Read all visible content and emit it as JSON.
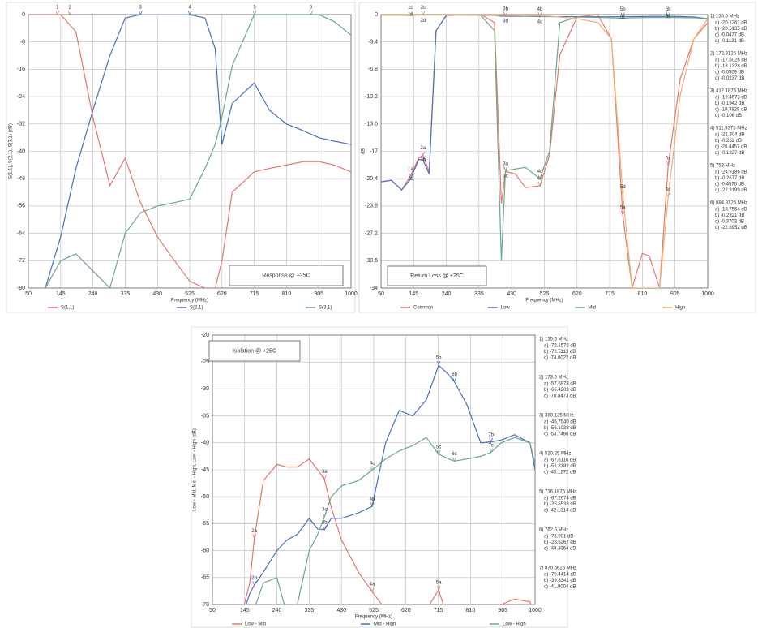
{
  "chart_data": [
    {
      "type": "line",
      "title": "Response @ +25C",
      "xlabel": "Frequency (MHz)",
      "ylabel": "S(1,1), S(2,1), S(3,1) (dB)",
      "x": [
        50,
        100,
        145,
        190,
        240,
        290,
        335,
        380,
        430,
        480,
        525,
        570,
        600,
        620,
        650,
        715,
        760,
        810,
        860,
        905,
        950,
        1000
      ],
      "series": [
        {
          "name": "S(1,1)",
          "color": "#e8766f",
          "values": [
            0,
            0,
            0,
            -5,
            -30,
            -50,
            -42,
            -55,
            -65,
            -72,
            -78,
            -80,
            -80,
            -72,
            -52,
            -46,
            -45,
            -44,
            -43,
            -43,
            -44,
            -46
          ]
        },
        {
          "name": "S(2,1)",
          "color": "#4a6fc0",
          "values": [
            null,
            -80,
            -65,
            -45,
            -28,
            -12,
            -1,
            0,
            0,
            0,
            0,
            -1,
            -10,
            -38,
            -26,
            -20,
            -28,
            -32,
            -34,
            -36,
            -37,
            -38
          ]
        },
        {
          "name": "S(3,1)",
          "color": "#6aa88a",
          "values": [
            null,
            -80,
            -72,
            -70,
            -75,
            -80,
            -64,
            -58,
            -56,
            -55,
            -54,
            -45,
            -38,
            -30,
            -15,
            0,
            0,
            0,
            0,
            0,
            -2,
            -6
          ]
        }
      ],
      "xlim": [
        50,
        1000
      ],
      "xticks": [
        50,
        145,
        240,
        335,
        430,
        525,
        620,
        715,
        810,
        905,
        1000
      ],
      "ylim": [
        -80,
        0
      ],
      "yticks": [
        0,
        -8,
        -16,
        -24,
        -32,
        -40,
        -48,
        -56,
        -64,
        -72,
        -80
      ],
      "grid": true,
      "markers": [
        {
          "label": "1",
          "x": 135.5,
          "y": 0,
          "color": "#e8766f"
        },
        {
          "label": "2",
          "x": 172,
          "y": 0,
          "color": "#e8766f"
        },
        {
          "label": "3",
          "x": 380,
          "y": 0,
          "color": "#4a6fc0"
        },
        {
          "label": "4",
          "x": 525,
          "y": 0,
          "color": "#4a6fc0"
        },
        {
          "label": "5",
          "x": 716,
          "y": 0,
          "color": "#6aa88a"
        },
        {
          "label": "6",
          "x": 882,
          "y": 0,
          "color": "#6aa88a"
        }
      ]
    },
    {
      "type": "line",
      "title": "Return Loss @ +25C",
      "xlabel": "Frequency (MHz)",
      "ylabel": "dB",
      "x": [
        50,
        80,
        110,
        135,
        160,
        172,
        190,
        210,
        240,
        290,
        340,
        380,
        400,
        412,
        440,
        470,
        512,
        540,
        570,
        620,
        680,
        720,
        753,
        780,
        810,
        830,
        860,
        885,
        920,
        960,
        1000
      ],
      "series": [
        {
          "name": "Common",
          "color": "#e8766f",
          "values": [
            -20.8,
            -20.6,
            -21.8,
            -20.1,
            -17.8,
            -17.5,
            -19.5,
            -2,
            -0.1,
            0,
            0,
            -1,
            -23.5,
            -19.5,
            -19.8,
            -21.5,
            -21.3,
            -17.5,
            -5,
            -0.3,
            0,
            -3,
            -24.9,
            -34,
            -29.7,
            -30,
            -34,
            -18.8,
            -8,
            -3,
            -1
          ]
        },
        {
          "name": "Low",
          "color": "#4a6fc0",
          "values": [
            -20.8,
            -20.6,
            -21.8,
            -20.5,
            -18,
            -18.1,
            -19.8,
            -2,
            -0.1,
            0,
            0,
            -0.1,
            -0.2,
            -0.2,
            -0.2,
            -0.2,
            -0.26,
            -0.26,
            -0.26,
            -0.26,
            -0.27,
            -0.27,
            -0.27,
            -0.25,
            -0.24,
            -0.23,
            -0.23,
            -0.23,
            -0.24,
            -0.3,
            -0.5
          ]
        },
        {
          "name": "Mid",
          "color": "#6aa88a",
          "values": [
            -0.05,
            -0.05,
            -0.05,
            -0.05,
            -0.05,
            -0.05,
            -0.05,
            -0.05,
            -0.05,
            -0.05,
            -0.1,
            -2,
            -30.6,
            -19.4,
            -19.2,
            -19,
            -20.4,
            -17,
            -1,
            -0.3,
            -0.35,
            -0.4,
            -0.46,
            -0.4,
            -0.38,
            -0.37,
            -0.37,
            -0.37,
            -0.38,
            -0.4,
            -0.5
          ]
        },
        {
          "name": "High",
          "color": "#f0b070",
          "values": [
            -0.1,
            -0.1,
            -0.1,
            -0.11,
            -0.05,
            -0.02,
            -0.02,
            -0.02,
            -0.05,
            -0.08,
            -0.1,
            -0.1,
            -0.1,
            -0.11,
            -0.12,
            -0.15,
            -0.18,
            -0.2,
            -0.3,
            -0.5,
            -1,
            -3,
            -22.3,
            -34,
            -34,
            -34,
            -34,
            -22.7,
            -10,
            -3,
            -0.5
          ]
        }
      ],
      "xlim": [
        50,
        1000
      ],
      "xticks": [
        50,
        145,
        240,
        335,
        430,
        525,
        620,
        715,
        810,
        905,
        1000
      ],
      "ylim": [
        -34,
        0
      ],
      "yticks": [
        0,
        -3.4,
        -6.8,
        -10.2,
        -13.6,
        -17,
        -20.4,
        -23.8,
        -27.2,
        -30.6,
        -34
      ],
      "grid": true,
      "markers": [
        {
          "label": "1a",
          "x": 135.5,
          "y": -20.1261,
          "color": "#e8766f"
        },
        {
          "label": "1b",
          "x": 135.5,
          "y": -20.5135,
          "color": "#4a6fc0"
        },
        {
          "label": "1c",
          "x": 135.5,
          "y": -0.0477,
          "color": "#6aa88a"
        },
        {
          "label": "1d",
          "x": 135.5,
          "y": -0.1131,
          "color": "#f0b070"
        },
        {
          "label": "2a",
          "x": 172.3125,
          "y": -17.5026,
          "color": "#e8766f"
        },
        {
          "label": "2b",
          "x": 172.3125,
          "y": -18.1328,
          "color": "#4a6fc0"
        },
        {
          "label": "2c",
          "x": 172.3125,
          "y": -0.0509,
          "color": "#6aa88a"
        },
        {
          "label": "2d",
          "x": 172.3125,
          "y": -0.0237,
          "color": "#f0b070"
        },
        {
          "label": "3a",
          "x": 412.1875,
          "y": -19.4673,
          "color": "#e8766f"
        },
        {
          "label": "3b",
          "x": 412.1875,
          "y": -0.1942,
          "color": "#4a6fc0"
        },
        {
          "label": "3c",
          "x": 412.1875,
          "y": -19.3829,
          "color": "#6aa88a"
        },
        {
          "label": "3d",
          "x": 412.1875,
          "y": -0.106,
          "color": "#f0b070"
        },
        {
          "label": "4a",
          "x": 511.9375,
          "y": -21.304,
          "color": "#e8766f"
        },
        {
          "label": "4b",
          "x": 511.9375,
          "y": -0.262,
          "color": "#4a6fc0"
        },
        {
          "label": "4c",
          "x": 511.9375,
          "y": -20.4457,
          "color": "#6aa88a"
        },
        {
          "label": "4d",
          "x": 511.9375,
          "y": -0.1827,
          "color": "#f0b070"
        },
        {
          "label": "5a",
          "x": 753,
          "y": -24.9186,
          "color": "#e8766f"
        },
        {
          "label": "5b",
          "x": 753,
          "y": -0.2677,
          "color": "#4a6fc0"
        },
        {
          "label": "5c",
          "x": 753,
          "y": -0.4576,
          "color": "#6aa88a"
        },
        {
          "label": "5d",
          "x": 753,
          "y": -22.3199,
          "color": "#f0b070"
        },
        {
          "label": "6a",
          "x": 884.8125,
          "y": -18.7564,
          "color": "#e8766f"
        },
        {
          "label": "6b",
          "x": 884.8125,
          "y": -0.2321,
          "color": "#4a6fc0"
        },
        {
          "label": "6c",
          "x": 884.8125,
          "y": -0.3703,
          "color": "#6aa88a"
        },
        {
          "label": "6d",
          "x": 884.8125,
          "y": -22.6952,
          "color": "#f0b070"
        }
      ],
      "readout": [
        {
          "title": "1) 135.5 MHz",
          "lines": [
            "a) -20.1261 dB",
            "b) -20.5135 dB",
            "c) -0.0477 dB",
            "d) -0.1131 dB"
          ]
        },
        {
          "title": "2) 172.3125 MHz",
          "lines": [
            "a) -17.5026 dB",
            "b) -18.1328 dB",
            "c) -0.0509 dB",
            "d) -0.0237 dB"
          ]
        },
        {
          "title": "3) 412.1875 MHz",
          "lines": [
            "a) -19.4673 dB",
            "b) -0.1942 dB",
            "c) -19.3829 dB",
            "d) -0.106 dB"
          ]
        },
        {
          "title": "4) 511.9375 MHz",
          "lines": [
            "a) -21.304 dB",
            "b) -0.262 dB",
            "c) -20.4457 dB",
            "d) -0.1827 dB"
          ]
        },
        {
          "title": "5) 753 MHz",
          "lines": [
            "a) -24.9186 dB",
            "b) -0.2677 dB",
            "c) -0.4576 dB",
            "d) -22.3199 dB"
          ]
        },
        {
          "title": "6) 884.8125 MHz",
          "lines": [
            "a) -18.7564 dB",
            "b) -0.2321 dB",
            "c) -0.3703 dB",
            "d) -22.6952 dB"
          ]
        }
      ]
    },
    {
      "type": "line",
      "title": "Isolation @ +25C",
      "xlabel": "Frequency (MHz)",
      "ylabel": "Low - Mid, Mid - High, Low - High (dB)",
      "x": [
        135.5,
        160,
        173.5,
        200,
        240,
        270,
        300,
        335,
        360,
        380,
        400,
        430,
        480,
        520,
        560,
        600,
        640,
        680,
        716,
        740,
        762,
        800,
        840,
        870,
        900,
        940,
        985,
        1000
      ],
      "series": [
        {
          "name": "Low - Mid",
          "color": "#e8766f",
          "values": [
            -72,
            -66,
            -57.7,
            -47,
            -44,
            -44.5,
            -44.5,
            -43,
            -45,
            -46.8,
            -52,
            -58,
            -64,
            -67.6,
            -71,
            -72,
            -72,
            -71,
            -67.3,
            -72,
            -76,
            -74,
            -72,
            -70.4,
            -70,
            -69,
            -69.5,
            -72
          ]
        },
        {
          "name": "Mid - High",
          "color": "#4a6fc0",
          "values": [
            -72.5,
            -68,
            -66.4,
            -64,
            -60,
            -58,
            -57,
            -54,
            -56,
            -56.1,
            -54,
            -54,
            -53,
            -51.8,
            -40,
            -34,
            -35,
            -32,
            -25.6,
            -27,
            -28.6,
            -33,
            -40,
            -39.8,
            -39.5,
            -38.5,
            -40,
            -45
          ]
        },
        {
          "name": "Low - High",
          "color": "#6aa88a",
          "values": [
            -74.8,
            -72,
            -70.8,
            -66,
            -65,
            -72,
            -70,
            -60,
            -57,
            -53.7,
            -50,
            -48,
            -47,
            -45.1,
            -43,
            -41.5,
            -40.5,
            -39,
            -42.1,
            -42.8,
            -43.4,
            -43,
            -42.5,
            -41.8,
            -40,
            -39,
            -40,
            -44
          ]
        }
      ],
      "xlim": [
        50,
        1000
      ],
      "xticks": [
        50,
        145,
        240,
        335,
        430,
        525,
        620,
        715,
        810,
        905,
        1000
      ],
      "ylim": [
        -70,
        -20
      ],
      "yticks": [
        -20,
        -25,
        -30,
        -35,
        -40,
        -45,
        -50,
        -55,
        -60,
        -65,
        -70
      ],
      "grid": true,
      "markers": [
        {
          "label": "2a",
          "x": 173.5,
          "y": -57.6978,
          "color": "#e8766f"
        },
        {
          "label": "2b",
          "x": 173.5,
          "y": -66.4203,
          "color": "#4a6fc0"
        },
        {
          "label": "3a",
          "x": 380.125,
          "y": -46.754,
          "color": "#e8766f"
        },
        {
          "label": "3c",
          "x": 380.125,
          "y": -53.7486,
          "color": "#6aa88a"
        },
        {
          "label": "3b",
          "x": 380.125,
          "y": -56.1038,
          "color": "#4a6fc0"
        },
        {
          "label": "4c",
          "x": 520.25,
          "y": -45.1272,
          "color": "#6aa88a"
        },
        {
          "label": "4b",
          "x": 520.25,
          "y": -51.8182,
          "color": "#4a6fc0"
        },
        {
          "label": "4a",
          "x": 520.25,
          "y": -67.6116,
          "color": "#e8766f"
        },
        {
          "label": "5b",
          "x": 716.1875,
          "y": -25.5538,
          "color": "#4a6fc0"
        },
        {
          "label": "5c",
          "x": 716.1875,
          "y": -42.1314,
          "color": "#6aa88a"
        },
        {
          "label": "5a",
          "x": 716.1875,
          "y": -67.2674,
          "color": "#e8766f"
        },
        {
          "label": "6b",
          "x": 762.5,
          "y": -28.6267,
          "color": "#4a6fc0"
        },
        {
          "label": "6c",
          "x": 762.5,
          "y": -43.4363,
          "color": "#6aa88a"
        },
        {
          "label": "7b",
          "x": 870.5625,
          "y": -39.8341,
          "color": "#4a6fc0"
        },
        {
          "label": "7c",
          "x": 870.5625,
          "y": -41.8004,
          "color": "#6aa88a"
        }
      ],
      "readout": [
        {
          "title": "1) 135.5 MHz",
          "lines": [
            "a) -72.1575 dB",
            "b) -72.5113 dB",
            "c) -74.8022 dB"
          ]
        },
        {
          "title": "2) 173.5 MHz",
          "lines": [
            "a) -57.6978 dB",
            "b) -66.4203 dB",
            "c) -70.8473 dB"
          ]
        },
        {
          "title": "3) 380.125 MHz",
          "lines": [
            "a) -46.7540 dB",
            "b) -56.1038 dB",
            "c) -53.7486 dB"
          ]
        },
        {
          "title": "4) 520.25 MHz",
          "lines": [
            "a) -67.6116 dB",
            "b) -51.8182 dB",
            "c) -45.1272 dB"
          ]
        },
        {
          "title": "5) 716.1875 MHz",
          "lines": [
            "a) -67.2674 dB",
            "b) -25.5538 dB",
            "c) -42.1314 dB"
          ]
        },
        {
          "title": "6) 762.5 MHz",
          "lines": [
            "a) -76.001 dB",
            "b) -28.6267 dB",
            "c) -43.4363 dB"
          ]
        },
        {
          "title": "7) 870.5625 MHz",
          "lines": [
            "a) -70.4414 dB",
            "b) -39.8341 dB",
            "c) -41.8004 dB"
          ]
        }
      ]
    }
  ]
}
